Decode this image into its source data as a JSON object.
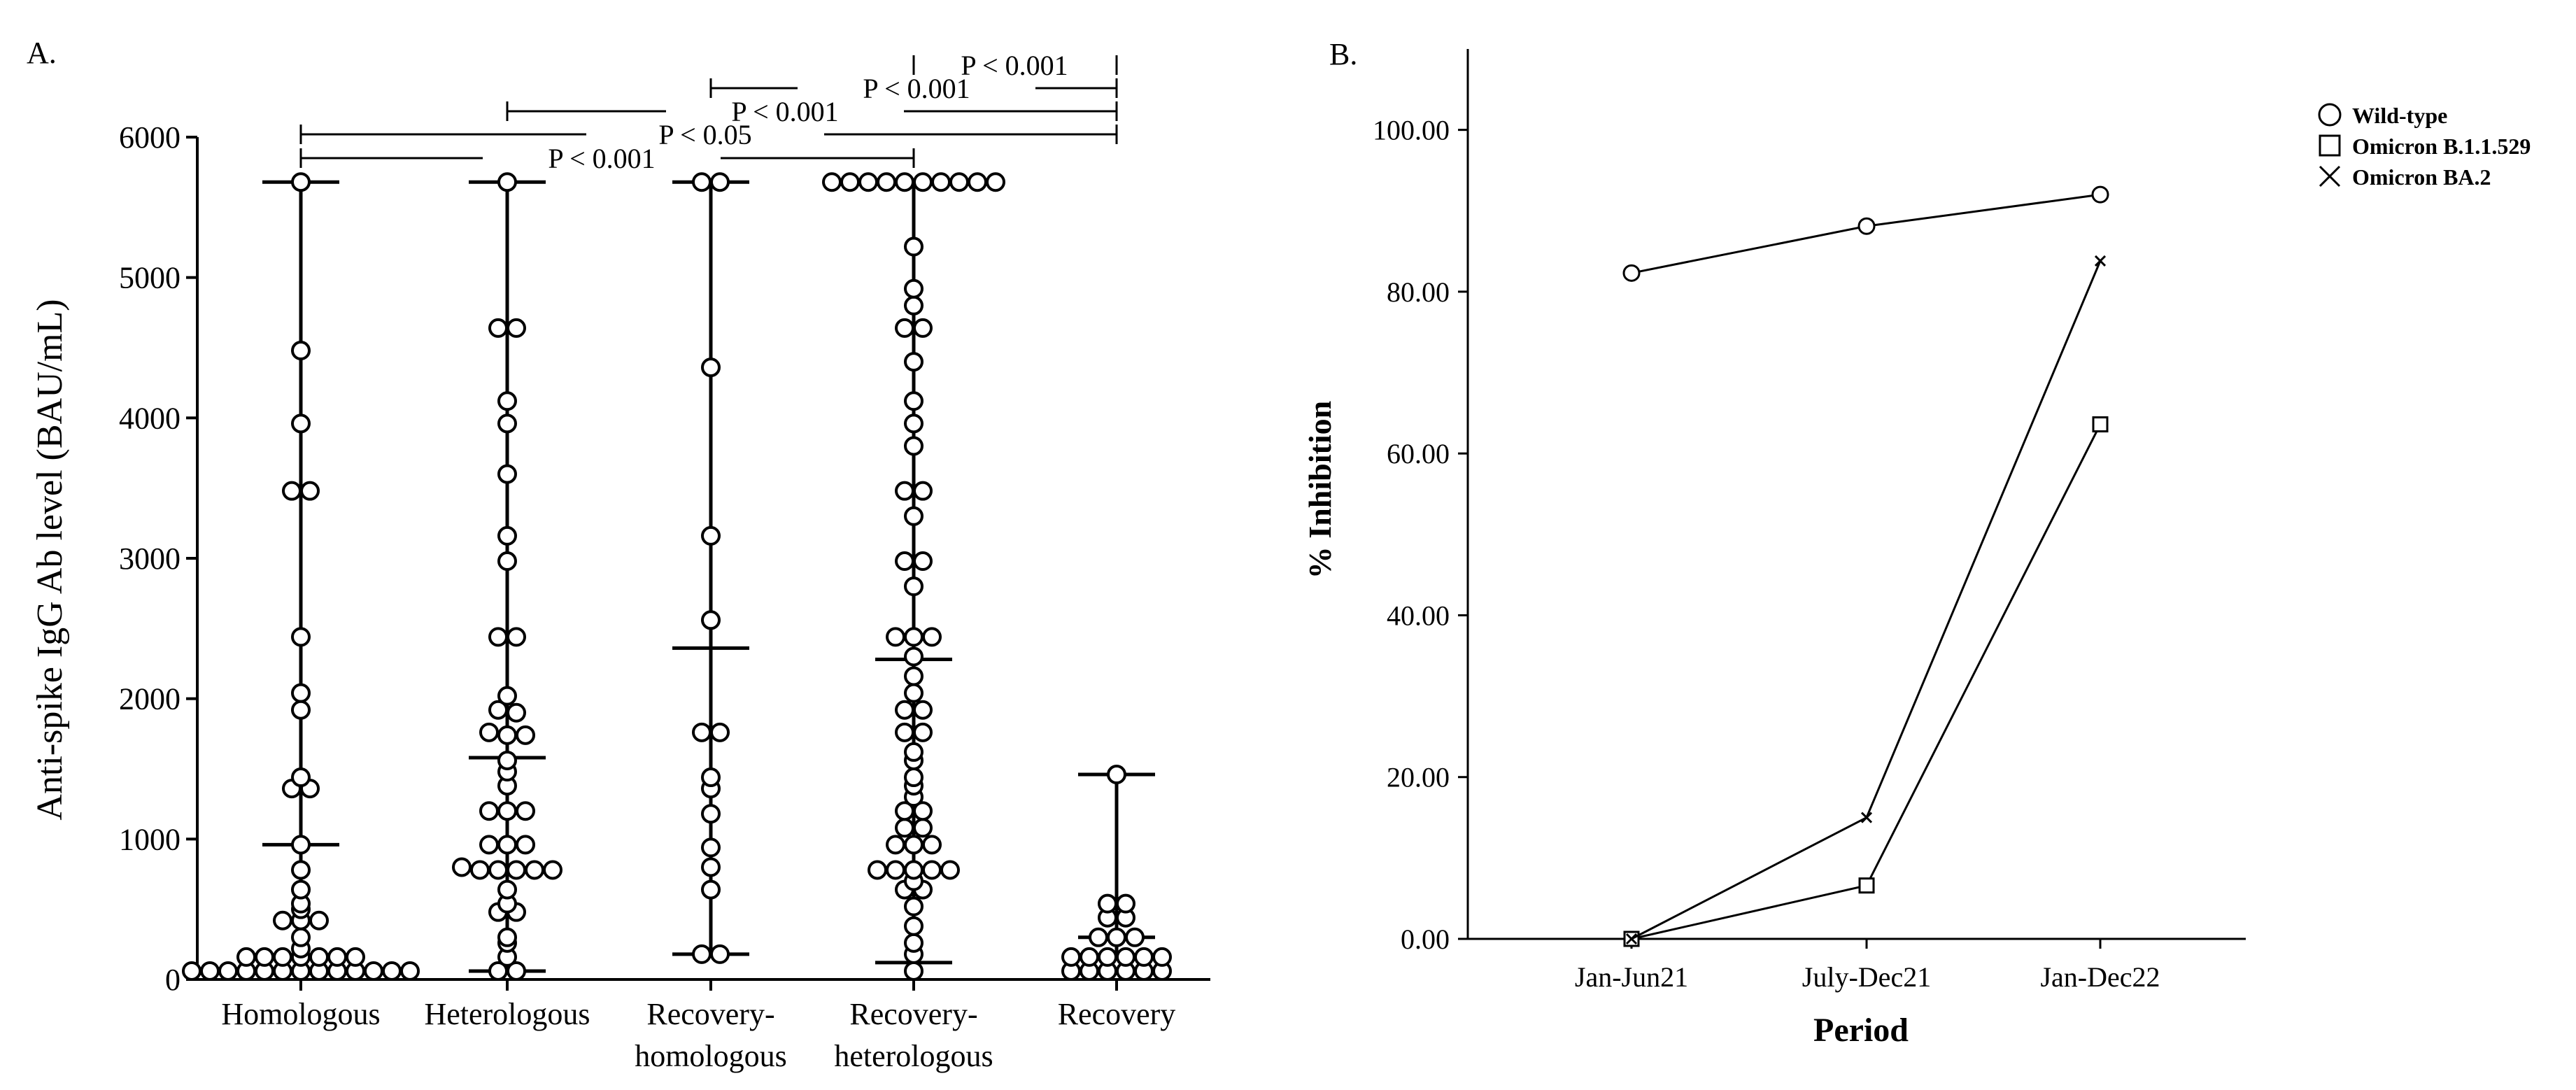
{
  "chart_data": [
    {
      "panel_label": "A.",
      "type": "scatter",
      "ylabel": "Anti-spike IgG Ab level (BAU/mL)",
      "xlabel": "",
      "ylim": [
        0,
        6000
      ],
      "yticks": [
        0,
        1000,
        2000,
        3000,
        4000,
        5000,
        6000
      ],
      "categories": [
        {
          "label": "Homologous",
          "line2": ""
        },
        {
          "label": "Heterologous",
          "line2": ""
        },
        {
          "label": "Recovery-",
          "line2": "homologous"
        },
        {
          "label": "Recovery-",
          "line2": "heterologous"
        },
        {
          "label": "Recovery",
          "line2": ""
        }
      ],
      "groups": [
        {
          "name": "Homologous",
          "mean": 960,
          "lower": 60,
          "upper": 5680,
          "values": [
            5680,
            4480,
            3960,
            3480,
            3480,
            2440,
            2040,
            1920,
            1440,
            1360,
            1360,
            960,
            780,
            640,
            540,
            500,
            420,
            420,
            420,
            300,
            220,
            160,
            160,
            160,
            160,
            160,
            160,
            160,
            60,
            60,
            60,
            60,
            60,
            60,
            60,
            60,
            60,
            60,
            60,
            60,
            60
          ]
        },
        {
          "name": "Heterologous",
          "mean": 1580,
          "lower": 60,
          "upper": 5680,
          "values": [
            5680,
            4640,
            4640,
            4120,
            3960,
            3600,
            3160,
            2980,
            2440,
            2440,
            2020,
            1920,
            1900,
            1760,
            1740,
            1740,
            1560,
            1480,
            1380,
            1200,
            1200,
            1200,
            960,
            960,
            960,
            800,
            780,
            780,
            780,
            780,
            780,
            640,
            540,
            480,
            480,
            300,
            260,
            160,
            60,
            60
          ]
        },
        {
          "name": "Recovery-homologous",
          "mean": 2360,
          "lower": 180,
          "upper": 5680,
          "values": [
            5680,
            5680,
            4360,
            3160,
            2560,
            1760,
            1760,
            1440,
            1360,
            1180,
            940,
            800,
            640,
            180,
            180
          ]
        },
        {
          "name": "Recovery-heterologous",
          "mean": 2280,
          "lower": 120,
          "upper": 5680,
          "values": [
            5680,
            5680,
            5680,
            5680,
            5680,
            5680,
            5680,
            5680,
            5680,
            5680,
            5220,
            4920,
            4800,
            4640,
            4640,
            4400,
            4120,
            3960,
            3800,
            3480,
            3480,
            3300,
            2980,
            2980,
            2800,
            2440,
            2440,
            2440,
            2300,
            2160,
            2040,
            1920,
            1920,
            1760,
            1760,
            1620,
            1560,
            1440,
            1380,
            1300,
            1200,
            1200,
            1080,
            1080,
            960,
            960,
            960,
            780,
            780,
            780,
            780,
            780,
            700,
            640,
            640,
            520,
            380,
            260,
            180,
            60
          ]
        },
        {
          "name": "Recovery",
          "mean": 300,
          "lower": 160,
          "upper": 1460,
          "values": [
            1460,
            540,
            540,
            440,
            440,
            300,
            300,
            300,
            160,
            160,
            160,
            160,
            160,
            160,
            60,
            60,
            60,
            60,
            60,
            60
          ]
        }
      ],
      "comparisons": [
        {
          "from": "Homologous",
          "to": "Recovery-heterologous",
          "label": "P < 0.001"
        },
        {
          "from": "Homologous",
          "to": "Recovery",
          "label": "P < 0.05"
        },
        {
          "from": "Heterologous",
          "to": "Recovery",
          "label": "P < 0.001"
        },
        {
          "from": "Recovery-homologous",
          "to": "Recovery",
          "label": "P < 0.001"
        },
        {
          "from": "Recovery-heterologous",
          "to": "Recovery",
          "label": "P < 0.001"
        }
      ]
    },
    {
      "panel_label": "B.",
      "type": "line",
      "xlabel": "Period",
      "ylabel": "% Inhibition",
      "categories": [
        "Jan-Jun21",
        "July-Dec21",
        "Jan-Dec22"
      ],
      "ylim": [
        0,
        110
      ],
      "yticks": [
        "0.00",
        "20.00",
        "40.00",
        "60.00",
        "80.00",
        "100.00"
      ],
      "legend_position": "top-right",
      "series": [
        {
          "name": "Wild-type",
          "marker": "circle",
          "values": [
            82.3,
            88.1,
            92.0
          ]
        },
        {
          "name": "Omicron B.1.1.529",
          "marker": "square",
          "values": [
            0.0,
            6.6,
            63.6
          ]
        },
        {
          "name": "Omicron BA.2",
          "marker": "x",
          "values": [
            0.0,
            15.0,
            83.8
          ]
        }
      ]
    }
  ]
}
